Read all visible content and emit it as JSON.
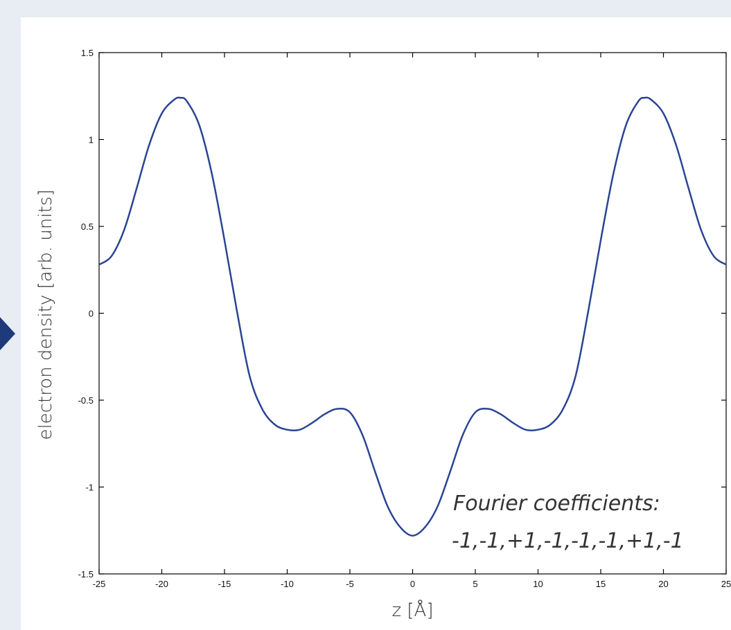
{
  "page": {
    "accent_color": "#1f3a7a",
    "background_color": "#e8ecf3",
    "nav_arrow_icon": "triangle-right"
  },
  "chart_data": {
    "type": "line",
    "title": "",
    "xlabel": "z [Å]",
    "ylabel": "electron density [arb. units]",
    "xlim": [
      -25,
      25
    ],
    "ylim": [
      -1.5,
      1.5
    ],
    "xticks": [
      -25,
      -20,
      -15,
      -10,
      -5,
      0,
      5,
      10,
      15,
      20,
      25
    ],
    "yticks": [
      -1.5,
      -1,
      -0.5,
      0,
      0.5,
      1,
      1.5
    ],
    "xtick_labels": [
      "-25",
      "-20",
      "-15",
      "-10",
      "-5",
      "0",
      "5",
      "10",
      "15",
      "20",
      "25"
    ],
    "ytick_labels": [
      "-1.5",
      "-1",
      "-0.5",
      "0",
      "0.5",
      "1",
      "1.5"
    ],
    "grid": false,
    "line_color": "#2a4494",
    "series": [
      {
        "values_x": [
          -25,
          -24,
          -23,
          -22,
          -21,
          -20,
          -19,
          -18.5,
          -18,
          -17,
          -16,
          -15,
          -14,
          -13,
          -12,
          -11,
          -10,
          -9,
          -8,
          -7,
          -6,
          -5,
          -4,
          -3,
          -2,
          -1,
          0,
          1,
          2,
          3,
          4,
          5,
          6,
          7,
          8,
          9,
          10,
          11,
          12,
          13,
          14,
          15,
          16,
          17,
          18,
          18.5,
          19,
          20,
          21,
          22,
          23,
          24,
          25
        ],
        "values_y": [
          0.28,
          0.33,
          0.48,
          0.72,
          0.97,
          1.15,
          1.23,
          1.24,
          1.22,
          1.08,
          0.8,
          0.42,
          0.01,
          -0.36,
          -0.55,
          -0.64,
          -0.67,
          -0.67,
          -0.63,
          -0.58,
          -0.55,
          -0.57,
          -0.7,
          -0.91,
          -1.11,
          -1.23,
          -1.28,
          -1.23,
          -1.11,
          -0.91,
          -0.7,
          -0.57,
          -0.55,
          -0.58,
          -0.63,
          -0.67,
          -0.67,
          -0.64,
          -0.55,
          -0.36,
          0.01,
          0.42,
          0.8,
          1.08,
          1.22,
          1.24,
          1.23,
          1.15,
          0.97,
          0.72,
          0.48,
          0.33,
          0.28
        ]
      }
    ],
    "annotations": [
      "Fourier coefficients:",
      "-1,-1,+1,-1,-1,-1,+1,-1"
    ]
  }
}
